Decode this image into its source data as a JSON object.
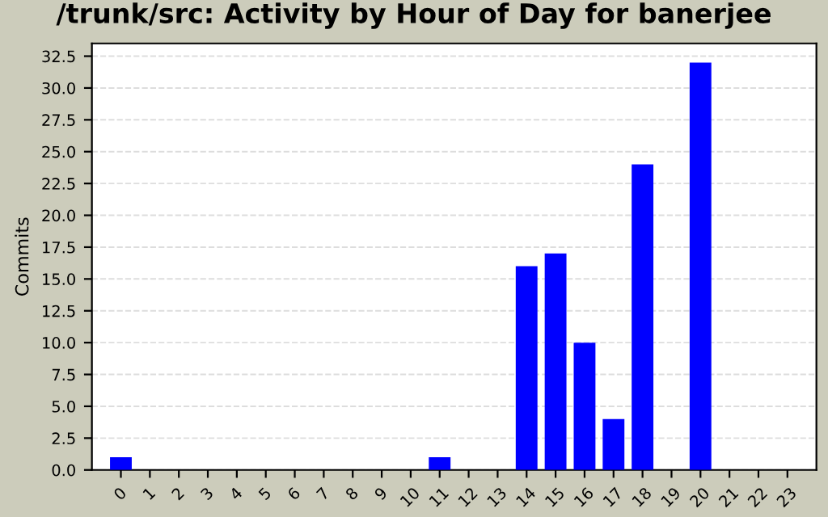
{
  "chart_data": {
    "type": "bar",
    "title": "/trunk/src: Activity by Hour of Day for banerjee",
    "ylabel": "Commits",
    "categories": [
      "0",
      "1",
      "2",
      "3",
      "4",
      "5",
      "6",
      "7",
      "8",
      "9",
      "10",
      "11",
      "12",
      "13",
      "14",
      "15",
      "16",
      "17",
      "18",
      "19",
      "20",
      "21",
      "22",
      "23"
    ],
    "values": [
      1,
      0,
      0,
      0,
      0,
      0,
      0,
      0,
      0,
      0,
      0,
      1,
      0,
      0,
      16,
      17,
      10,
      4,
      24,
      0,
      32,
      0,
      0,
      0
    ],
    "color": "#0000ff",
    "ylim": [
      0,
      33.5
    ],
    "yticks": [
      {
        "value": 0,
        "label": "0.0"
      },
      {
        "value": 2.5,
        "label": "2.5"
      },
      {
        "value": 5,
        "label": "5.0"
      },
      {
        "value": 7.5,
        "label": "7.5"
      },
      {
        "value": 10,
        "label": "10.0"
      },
      {
        "value": 12.5,
        "label": "12.5"
      },
      {
        "value": 15,
        "label": "15.0"
      },
      {
        "value": 17.5,
        "label": "17.5"
      },
      {
        "value": 20,
        "label": "20.0"
      },
      {
        "value": 22.5,
        "label": "22.5"
      },
      {
        "value": 25,
        "label": "25.0"
      },
      {
        "value": 27.5,
        "label": "27.5"
      },
      {
        "value": 30,
        "label": "30.0"
      },
      {
        "value": 32.5,
        "label": "32.5"
      }
    ],
    "grid": "y"
  }
}
